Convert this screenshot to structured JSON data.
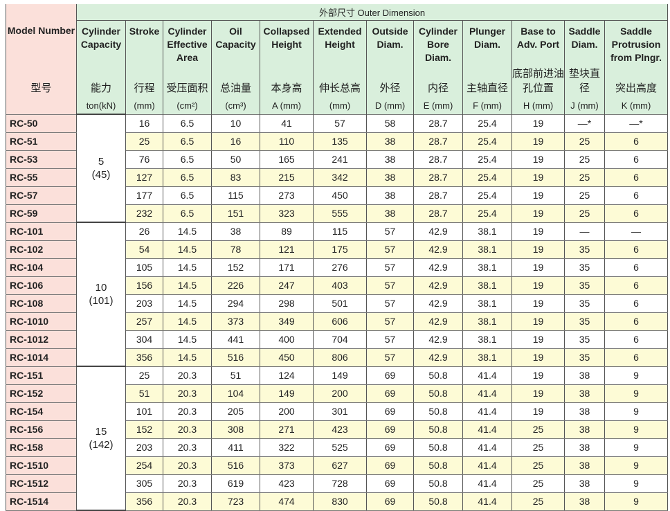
{
  "header": {
    "title": "外部尺寸 Outer Dimension",
    "columns": [
      {
        "en": "Model Number",
        "zh": "型号"
      },
      {
        "en": "Cylinder Capacity",
        "zh": "能力",
        "unit": "ton(kN)"
      },
      {
        "en": "Stroke",
        "zh": "行程",
        "unit": "(mm)"
      },
      {
        "en": "Cylinder Effective Area",
        "zh": "受压面积",
        "unit": "(cm²)"
      },
      {
        "en": "Oil Capacity",
        "zh": "总油量",
        "unit": "(cm³)"
      },
      {
        "en": "Collapsed Height",
        "zh": "本身高",
        "unit": "A (mm)"
      },
      {
        "en": "Extended Height",
        "zh": "伸长总高",
        "unit": "(mm)"
      },
      {
        "en": "Outside Diam.",
        "zh": "外径",
        "unit": "D (mm)"
      },
      {
        "en": "Cylinder Bore Diam.",
        "zh": "内径",
        "unit": "E (mm)"
      },
      {
        "en": "Plunger Diam.",
        "zh": "主轴直径",
        "unit": "F (mm)"
      },
      {
        "en": "Base to Adv. Port",
        "zh": "底部前进油孔位置",
        "unit": "H (mm)"
      },
      {
        "en": "Saddle Diam.",
        "zh": "垫块直径",
        "unit": "J (mm)"
      },
      {
        "en": "Saddle Protrusion from Plngr.",
        "zh": "突出高度",
        "unit": "K (mm)"
      }
    ]
  },
  "groups": [
    {
      "capacity": 5,
      "capacity_kn": "(45)",
      "rows": [
        [
          "RC-50",
          16,
          6.5,
          10,
          41,
          57,
          58,
          28.7,
          25.4,
          19,
          "—*",
          "—*"
        ],
        [
          "RC-51",
          25,
          6.5,
          16,
          110,
          135,
          38,
          28.7,
          25.4,
          19,
          25,
          6
        ],
        [
          "RC-53",
          76,
          6.5,
          50,
          165,
          241,
          38,
          28.7,
          25.4,
          19,
          25,
          6
        ],
        [
          "RC-55",
          127,
          6.5,
          83,
          215,
          342,
          38,
          28.7,
          25.4,
          19,
          25,
          6
        ],
        [
          "RC-57",
          177,
          6.5,
          115,
          273,
          450,
          38,
          28.7,
          25.4,
          19,
          25,
          6
        ],
        [
          "RC-59",
          232,
          6.5,
          151,
          323,
          555,
          38,
          28.7,
          25.4,
          19,
          25,
          6
        ]
      ]
    },
    {
      "capacity": 10,
      "capacity_kn": "(101)",
      "rows": [
        [
          "RC-101",
          26,
          14.5,
          38,
          89,
          115,
          57,
          42.9,
          38.1,
          19,
          "—",
          "—"
        ],
        [
          "RC-102",
          54,
          14.5,
          78,
          121,
          175,
          57,
          42.9,
          38.1,
          19,
          35,
          6
        ],
        [
          "RC-104",
          105,
          14.5,
          152,
          171,
          276,
          57,
          42.9,
          38.1,
          19,
          35,
          6
        ],
        [
          "RC-106",
          156,
          14.5,
          226,
          247,
          403,
          57,
          42.9,
          38.1,
          19,
          35,
          6
        ],
        [
          "RC-108",
          203,
          14.5,
          294,
          298,
          501,
          57,
          42.9,
          38.1,
          19,
          35,
          6
        ],
        [
          "RC-1010",
          257,
          14.5,
          373,
          349,
          606,
          57,
          42.9,
          38.1,
          19,
          35,
          6
        ],
        [
          "RC-1012",
          304,
          14.5,
          441,
          400,
          704,
          57,
          42.9,
          38.1,
          19,
          35,
          6
        ],
        [
          "RC-1014",
          356,
          14.5,
          516,
          450,
          806,
          57,
          42.9,
          38.1,
          19,
          35,
          6
        ]
      ]
    },
    {
      "capacity": 15,
      "capacity_kn": "(142)",
      "rows": [
        [
          "RC-151",
          25,
          20.3,
          51,
          124,
          149,
          69,
          50.8,
          41.4,
          19,
          38,
          9
        ],
        [
          "RC-152",
          51,
          20.3,
          104,
          149,
          200,
          69,
          50.8,
          41.4,
          19,
          38,
          9
        ],
        [
          "RC-154",
          101,
          20.3,
          205,
          200,
          301,
          69,
          50.8,
          41.4,
          19,
          38,
          9
        ],
        [
          "RC-156",
          152,
          20.3,
          308,
          271,
          423,
          69,
          50.8,
          41.4,
          25,
          38,
          9
        ],
        [
          "RC-158",
          203,
          20.3,
          411,
          322,
          525,
          69,
          50.8,
          41.4,
          25,
          38,
          9
        ],
        [
          "RC-1510",
          254,
          20.3,
          516,
          373,
          627,
          69,
          50.8,
          41.4,
          25,
          38,
          9
        ],
        [
          "RC-1512",
          305,
          20.3,
          619,
          423,
          728,
          69,
          50.8,
          41.4,
          25,
          38,
          9
        ],
        [
          "RC-1514",
          356,
          20.3,
          723,
          474,
          830,
          69,
          50.8,
          41.4,
          25,
          38,
          9
        ]
      ]
    }
  ]
}
